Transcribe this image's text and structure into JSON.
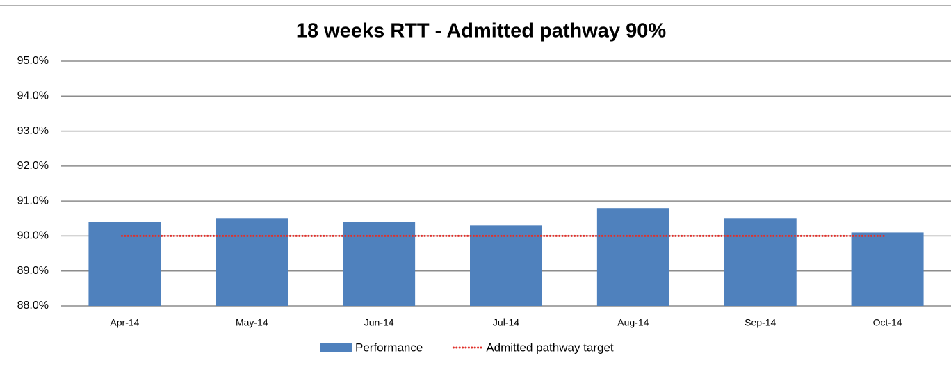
{
  "chart_data": {
    "type": "bar",
    "title": "18 weeks RTT  - Admitted pathway 90%",
    "categories": [
      "Apr-14",
      "May-14",
      "Jun-14",
      "Jul-14",
      "Aug-14",
      "Sep-14",
      "Oct-14"
    ],
    "series": [
      {
        "name": "Performance",
        "type": "bar",
        "color": "#4f81bd",
        "values": [
          90.4,
          90.5,
          90.4,
          90.3,
          90.8,
          90.5,
          90.1
        ]
      },
      {
        "name": "Admitted pathway target",
        "type": "line",
        "color": "#e0302a",
        "values": [
          90,
          90,
          90,
          90,
          90,
          90,
          90
        ]
      }
    ],
    "ylim": [
      88,
      95
    ],
    "yticks": [
      {
        "value": 88,
        "label": "88.0%"
      },
      {
        "value": 89,
        "label": "89.0%"
      },
      {
        "value": 90,
        "label": "90.0%"
      },
      {
        "value": 91,
        "label": "91.0%"
      },
      {
        "value": 92,
        "label": "92.0%"
      },
      {
        "value": 93,
        "label": "93.0%"
      },
      {
        "value": 94,
        "label": "94.0%"
      },
      {
        "value": 95,
        "label": "95.0%"
      }
    ],
    "grid": true,
    "legend": "bottom"
  }
}
